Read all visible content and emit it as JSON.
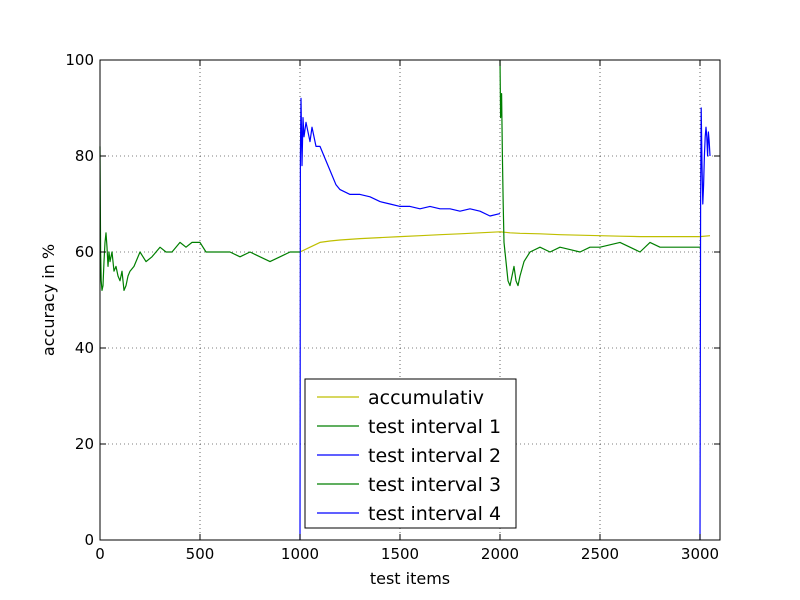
{
  "chart_data": {
    "type": "line",
    "title": "",
    "xlabel": "test items",
    "ylabel": "accuracy in %",
    "xlim": [
      0,
      3100
    ],
    "ylim": [
      0,
      100
    ],
    "xticks": [
      0,
      500,
      1000,
      1500,
      2000,
      2500,
      3000
    ],
    "yticks": [
      0,
      20,
      40,
      60,
      80,
      100
    ],
    "grid": true,
    "grid_style": "dotted",
    "legend_position": "lower-center",
    "series": [
      {
        "name": "accumulativ",
        "color": "#bfbf00",
        "x": [
          1000,
          1050,
          1100,
          1150,
          1200,
          1300,
          1400,
          1500,
          1600,
          1700,
          1800,
          1900,
          2000,
          2050,
          2100,
          2200,
          2300,
          2400,
          2500,
          2600,
          2700,
          2800,
          2900,
          3000,
          3050
        ],
        "y": [
          60,
          61,
          62,
          62.3,
          62.5,
          62.8,
          63,
          63.2,
          63.4,
          63.6,
          63.8,
          64,
          64.2,
          64,
          63.9,
          63.8,
          63.6,
          63.5,
          63.4,
          63.3,
          63.2,
          63.2,
          63.2,
          63.2,
          63.4
        ]
      },
      {
        "name": "test interval 1",
        "color": "#007f00",
        "x": [
          0,
          3,
          6,
          10,
          15,
          20,
          25,
          30,
          35,
          40,
          45,
          50,
          60,
          70,
          80,
          90,
          100,
          110,
          120,
          130,
          140,
          150,
          170,
          200,
          230,
          260,
          300,
          330,
          360,
          400,
          430,
          460,
          500,
          530,
          560,
          600,
          650,
          700,
          750,
          800,
          850,
          900,
          950,
          1000
        ],
        "y": [
          82,
          60,
          54,
          52,
          53,
          58,
          62,
          64,
          61,
          57,
          60,
          58,
          60,
          56,
          57,
          55,
          54,
          56,
          52,
          53,
          55,
          56,
          57,
          60,
          58,
          59,
          61,
          60,
          60,
          62,
          61,
          62,
          62,
          60,
          60,
          60,
          60,
          59,
          60,
          59,
          58,
          59,
          60,
          60
        ]
      },
      {
        "name": "test interval 2",
        "color": "#0000ff",
        "x": [
          1000,
          1002,
          1005,
          1010,
          1015,
          1020,
          1030,
          1040,
          1050,
          1060,
          1080,
          1100,
          1120,
          1150,
          1180,
          1200,
          1250,
          1300,
          1350,
          1400,
          1450,
          1500,
          1550,
          1600,
          1650,
          1700,
          1750,
          1800,
          1850,
          1900,
          1950,
          2000
        ],
        "y": [
          0,
          80,
          92,
          78,
          88,
          84,
          87,
          85,
          83,
          86,
          82,
          82,
          80,
          77,
          74,
          73,
          72,
          72,
          71.5,
          70.5,
          70,
          69.5,
          69.5,
          69,
          69.5,
          69,
          69,
          68.5,
          69,
          68.5,
          67.5,
          68
        ]
      },
      {
        "name": "test interval 3",
        "color": "#007f00",
        "x": [
          2000,
          2003,
          2008,
          2012,
          2016,
          2020,
          2030,
          2040,
          2050,
          2060,
          2070,
          2080,
          2090,
          2100,
          2120,
          2150,
          2200,
          2250,
          2300,
          2350,
          2400,
          2450,
          2500,
          2550,
          2600,
          2650,
          2700,
          2750,
          2800,
          2850,
          2900,
          2950,
          3000
        ],
        "y": [
          100,
          88,
          93,
          80,
          70,
          62,
          58,
          54,
          53,
          55,
          57,
          54,
          53,
          55,
          58,
          60,
          61,
          60,
          61,
          60.5,
          60,
          61,
          61,
          61.5,
          62,
          61,
          60,
          62,
          61,
          61,
          61,
          61,
          61
        ]
      },
      {
        "name": "test interval 4",
        "color": "#0000ff",
        "x": [
          3000,
          3003,
          3006,
          3010,
          3014,
          3018,
          3022,
          3026,
          3030,
          3034,
          3038,
          3042,
          3046,
          3050
        ],
        "y": [
          0,
          70,
          90,
          78,
          70,
          74,
          80,
          84,
          86,
          84,
          80,
          85,
          83,
          80
        ]
      }
    ]
  }
}
